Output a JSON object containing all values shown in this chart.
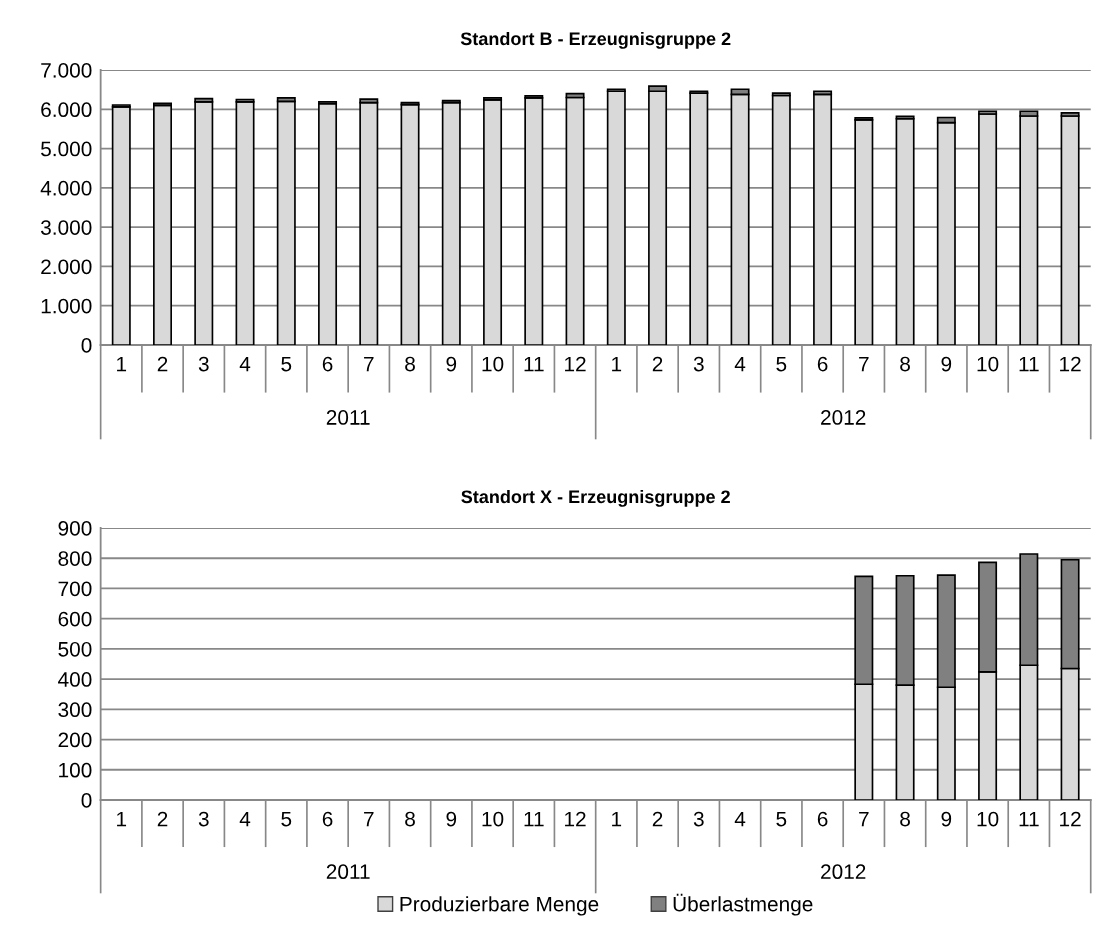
{
  "chart_data": [
    {
      "type": "bar",
      "title": "Standort B - Erzeugnisgruppe 2",
      "stacked": true,
      "categories": [
        "1",
        "2",
        "3",
        "4",
        "5",
        "6",
        "7",
        "8",
        "9",
        "10",
        "11",
        "12",
        "1",
        "2",
        "3",
        "4",
        "5",
        "6",
        "7",
        "8",
        "9",
        "10",
        "11",
        "12"
      ],
      "annotations": [
        "2011",
        "2012"
      ],
      "series": [
        {
          "color": "#d9d9d9",
          "values": [
            6060,
            6100,
            6190,
            6190,
            6200,
            6140,
            6170,
            6120,
            6170,
            6240,
            6290,
            6300,
            6460,
            6460,
            6410,
            6380,
            6350,
            6380,
            5730,
            5760,
            5660,
            5880,
            5830,
            5830
          ]
        },
        {
          "color": "#808080",
          "values": [
            50,
            50,
            80,
            60,
            90,
            50,
            90,
            50,
            50,
            50,
            50,
            100,
            50,
            130,
            50,
            130,
            60,
            80,
            50,
            60,
            130,
            70,
            120,
            80
          ]
        }
      ],
      "ylim": [
        0,
        7000
      ],
      "yticks": [
        0,
        {
          "value": 1000,
          "label": "1.000"
        },
        {
          "value": 2000,
          "label": "2.000"
        },
        {
          "value": 3000,
          "label": "3.000"
        },
        {
          "value": 4000,
          "label": "4.000"
        },
        {
          "value": 5000,
          "label": "5.000"
        },
        {
          "value": 6000,
          "label": "6.000"
        },
        {
          "value": 7000,
          "label": "7.000"
        }
      ],
      "grid": "y",
      "legend": false
    },
    {
      "type": "bar",
      "title": "Standort X - Erzeugnisgruppe 2",
      "stacked": true,
      "categories": [
        "1",
        "2",
        "3",
        "4",
        "5",
        "6",
        "7",
        "8",
        "9",
        "10",
        "11",
        "12",
        "1",
        "2",
        "3",
        "4",
        "5",
        "6",
        "7",
        "8",
        "9",
        "10",
        "11",
        "12"
      ],
      "annotations": [
        "2011",
        "2012"
      ],
      "series": [
        {
          "name": "Produzierbare Menge",
          "color": "#d9d9d9",
          "values": [
            null,
            null,
            null,
            null,
            null,
            null,
            null,
            null,
            null,
            null,
            null,
            null,
            null,
            null,
            null,
            null,
            null,
            null,
            383,
            380,
            373,
            424,
            446,
            435
          ]
        },
        {
          "name": "Überlastmenge",
          "color": "#808080",
          "values": [
            null,
            null,
            null,
            null,
            null,
            null,
            null,
            null,
            null,
            null,
            null,
            null,
            null,
            null,
            null,
            null,
            null,
            null,
            357,
            362,
            371,
            362,
            368,
            360
          ]
        }
      ],
      "ylim": [
        0,
        900
      ],
      "yticks": [
        0,
        100,
        200,
        300,
        400,
        500,
        600,
        700,
        800,
        900
      ],
      "grid": "y",
      "legend": "bottom"
    }
  ]
}
